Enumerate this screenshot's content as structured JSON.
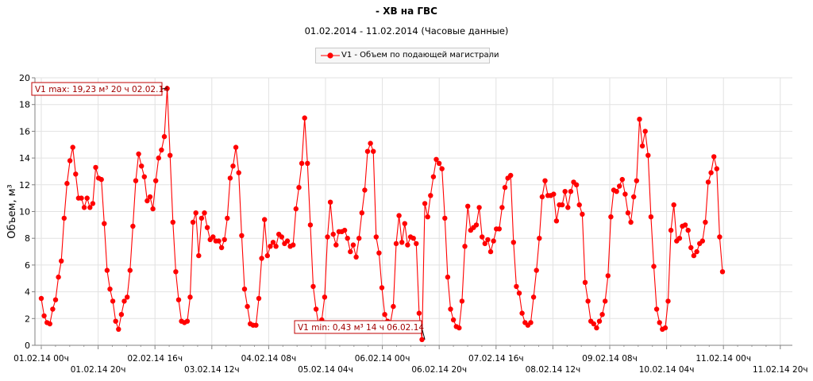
{
  "chart_data": {
    "type": "line",
    "title": "- ХВ на ГВС",
    "subtitle": "01.02.2014 - 11.02.2014 (Часовые данные)",
    "xlabel": "",
    "ylabel": "Объем, м³",
    "ylim": [
      0,
      20
    ],
    "yticks": [
      "0",
      "2",
      "4",
      "6",
      "8",
      "10",
      "12",
      "14",
      "16",
      "18",
      "20"
    ],
    "grid": true,
    "legend_position": "top-center",
    "x_tick_labels_upper": [
      "01.02.14 00ч",
      "02.02.14 16ч",
      "04.02.14 08ч",
      "06.02.14 00ч",
      "07.02.14 16ч",
      "09.02.14 08ч",
      "11.02.14 00ч"
    ],
    "x_tick_labels_lower": [
      "01.02.14 20ч",
      "03.02.14 12ч",
      "05.02.14 04ч",
      "06.02.14 20ч",
      "08.02.14 12ч",
      "10.02.14 04ч",
      "11.02.14 20ч"
    ],
    "series": [
      {
        "name": "V1 - Объем по подающей магистрали",
        "color": "#ff0000",
        "values": [
          3.5,
          2.2,
          1.7,
          1.6,
          2.7,
          3.4,
          5.1,
          6.3,
          9.5,
          12.1,
          13.8,
          14.8,
          12.8,
          11.0,
          11.0,
          10.3,
          11.0,
          10.3,
          10.6,
          13.3,
          12.5,
          12.4,
          9.1,
          5.6,
          4.2,
          3.3,
          1.8,
          1.2,
          2.3,
          3.3,
          3.6,
          5.6,
          8.9,
          12.3,
          14.3,
          13.4,
          12.6,
          10.8,
          11.1,
          10.2,
          12.3,
          14.0,
          14.6,
          15.6,
          19.2,
          14.2,
          9.2,
          5.5,
          3.4,
          1.8,
          1.7,
          1.8,
          3.6,
          9.2,
          9.9,
          6.7,
          9.5,
          9.9,
          8.8,
          7.9,
          8.1,
          7.8,
          7.8,
          7.3,
          7.9,
          9.5,
          12.5,
          13.4,
          14.8,
          12.9,
          8.2,
          4.2,
          2.9,
          1.6,
          1.5,
          1.5,
          3.5,
          6.5,
          9.4,
          6.7,
          7.4,
          7.7,
          7.4,
          8.3,
          8.1,
          7.6,
          7.8,
          7.4,
          7.5,
          10.2,
          11.8,
          13.6,
          17.0,
          13.6,
          9.0,
          4.4,
          2.7,
          1.4,
          1.9,
          3.6,
          8.1,
          10.7,
          8.3,
          7.5,
          8.5,
          8.5,
          8.6,
          8.0,
          7.0,
          7.5,
          6.6,
          8.0,
          9.9,
          11.6,
          14.5,
          15.1,
          14.5,
          8.1,
          6.9,
          4.3,
          2.3,
          1.8,
          1.7,
          2.9,
          7.6,
          9.7,
          7.7,
          9.1,
          7.5,
          8.1,
          8.0,
          7.6,
          2.4,
          0.43,
          10.6,
          9.6,
          11.2,
          12.6,
          13.9,
          13.6,
          13.2,
          9.5,
          5.1,
          2.7,
          1.9,
          1.4,
          1.3,
          3.3,
          7.4,
          10.4,
          8.6,
          8.8,
          9.0,
          10.3,
          8.1,
          7.6,
          7.9,
          7.0,
          7.8,
          8.7,
          8.7,
          10.3,
          11.8,
          12.5,
          12.7,
          7.7,
          4.4,
          3.9,
          2.4,
          1.7,
          1.5,
          1.7,
          3.6,
          5.6,
          8.0,
          11.1,
          12.3,
          11.2,
          11.2,
          11.3,
          9.3,
          10.5,
          10.5,
          11.5,
          10.3,
          11.5,
          12.2,
          12.0,
          10.5,
          9.8,
          4.7,
          3.3,
          1.8,
          1.6,
          1.3,
          1.8,
          2.3,
          3.3,
          5.2,
          9.6,
          11.6,
          11.5,
          11.9,
          12.4,
          11.3,
          9.9,
          9.2,
          11.1,
          12.3,
          16.9,
          14.9,
          16.0,
          14.2,
          9.6,
          5.9,
          2.7,
          1.7,
          1.2,
          1.3,
          3.3,
          8.6,
          10.5,
          7.8,
          8.0,
          8.9,
          9.0,
          8.6,
          7.3,
          6.7,
          7.0,
          7.6,
          7.8,
          9.2,
          12.2,
          12.9,
          14.1,
          13.2,
          8.1,
          5.5
        ]
      }
    ],
    "annotations": [
      {
        "text": "V1 max: 19,23 м³ 20 ч 02.02.14",
        "target_index": 44,
        "value": 19.23
      },
      {
        "text": "V1 min: 0,43 м³ 14 ч 06.02.14",
        "target_index": 134,
        "value": 0.43
      }
    ]
  }
}
